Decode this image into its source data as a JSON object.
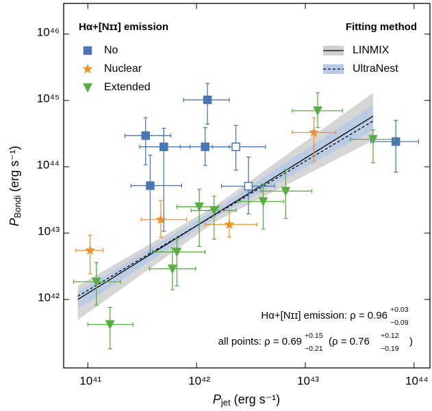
{
  "chart_data": {
    "type": "scatter",
    "xscale": "log",
    "yscale": "log",
    "xlim": [
      6e+40,
      1.4e+44
    ],
    "ylim": [
      9.3e+40,
      2.9e+46
    ],
    "xticks": [
      {
        "value": 1e+41,
        "label": "10⁴¹"
      },
      {
        "value": 1e+42,
        "label": "10⁴²"
      },
      {
        "value": 1e+43,
        "label": "10⁴³"
      },
      {
        "value": 1e+44,
        "label": "10⁴⁴"
      }
    ],
    "yticks": [
      {
        "value": 1e+42,
        "label": "10⁴²"
      },
      {
        "value": 1e+43,
        "label": "10⁴³"
      },
      {
        "value": 1e+44,
        "label": "10⁴⁴"
      },
      {
        "value": 1e+45,
        "label": "10⁴⁵"
      },
      {
        "value": 1e+46,
        "label": "10⁴⁶"
      }
    ],
    "x_label": {
      "symbol": "P",
      "subscript": "jet",
      "units": "(erg s⁻¹)"
    },
    "y_label": {
      "symbol": "P",
      "subscript": "Bondi",
      "units": "(erg s⁻¹)"
    },
    "legend_title": "Hα+[Nɪɪ] emission",
    "fits_legend_title": "Fitting method",
    "series": [
      {
        "name": "No",
        "color": "#4a77b4",
        "marker": "square",
        "x": [
          1.26e+42,
          3.4e+41,
          5e+41,
          1.2e+42,
          3.75e+41,
          6.8e+43,
          2.3e+42,
          3e+42
        ],
        "y": [
          1.02e+45,
          2.95e+44,
          2e+44,
          2e+44,
          5.2e+43,
          2.4e+44,
          2e+44,
          5.1e+43
        ],
        "x_low": [
          7.6e+41,
          2.2e+41,
          3e+41,
          7.1e+41,
          2.5e+41,
          4e+43,
          1.4e+42,
          1.7e+42
        ],
        "x_high": [
          2e+42,
          5.8e+41,
          8.7e+41,
          2e+42,
          7.3e+41,
          1.1e+44,
          4.3e+42,
          5.2e+42
        ],
        "y_low": [
          4.4e+44,
          1.07e+44,
          1.07e+43,
          1.05e+44,
          5e+42,
          8.3e+43,
          8.9e+43,
          1.95e+43
        ],
        "y_high": [
          1.8e+45,
          5.5e+44,
          3.8e+44,
          3.9e+44,
          1.5e+44,
          5e+44,
          4.2e+44,
          1.4e+44
        ],
        "filled": [
          true,
          true,
          true,
          true,
          true,
          true,
          false,
          false
        ]
      },
      {
        "name": "Nuclear",
        "color": "#f0922b",
        "marker": "star",
        "x": [
          1.05e+41,
          4.7e+41,
          2e+42,
          1.2e+43
        ],
        "y": [
          5.5e+42,
          1.6e+43,
          1.35e+43,
          3.3e+44
        ],
        "x_low": [
          7.8e+40,
          3.1e+41,
          1.2e+42,
          7.6e+42
        ],
        "x_high": [
          1.38e+41,
          8.1e+41,
          3.6e+42,
          1.9e+43
        ],
        "y_low": [
          2.45e+42,
          8.7e+42,
          8.7e+42,
          1.2e+44
        ],
        "y_high": [
          9.3e+42,
          3.1e+43,
          2.2e+43,
          5.5e+44
        ]
      },
      {
        "name": "Extended",
        "color": "#5aab45",
        "marker": "triangle-down",
        "x": [
          1.2e+41,
          1.6e+41,
          6e+41,
          6.6e+41,
          1.06e+42,
          1.45e+42,
          4.1e+42,
          6.6e+42,
          1.3e+43,
          4.2e+43
        ],
        "y": [
          1.85e+42,
          4.2e+41,
          2.9e+42,
          5.2e+42,
          2.5e+43,
          2.2e+43,
          3e+43,
          4.3e+43,
          7e+44,
          2.6e+44
        ],
        "x_low": [
          7.4e+40,
          1e+41,
          3.7e+41,
          4e+41,
          6.6e+41,
          8.9e+41,
          2.4e+42,
          3.9e+42,
          7.6e+42,
          2.6e+43
        ],
        "x_high": [
          2e+41,
          2.6e+41,
          9.8e+41,
          1.2e+42,
          1.6e+42,
          2.3e+42,
          6.3e+42,
          1.15e+43,
          2.2e+43,
          6.6e+43
        ],
        "y_low": [
          8.2e+41,
          1.8e+41,
          1.4e+42,
          1.6e+42,
          6.3e+42,
          8.1e+42,
          1.15e+43,
          1.66e+43,
          3.9e+44,
          1.15e+44
        ],
        "y_high": [
          3.6e+42,
          7.6e+41,
          6e+42,
          8.3e+42,
          4.6e+43,
          3.6e+43,
          5.5e+43,
          9.1e+43,
          1.3e+45,
          3.6e+44
        ]
      }
    ],
    "fits": [
      {
        "name": "LINMIX",
        "color": "#000000",
        "dash": false,
        "band_color": "#cfcfcf",
        "x": [
          8.1e+40,
          4.2e+43
        ],
        "y": [
          1e+42,
          5.8e+44
        ],
        "band_x": [
          8.1e+40,
          1.5e+42,
          4.2e+43
        ],
        "band_low": [
          4.9e+41,
          1.5e+43,
          2.5e+44
        ],
        "band_high": [
          1.6e+42,
          2.6e+43,
          1.3e+45
        ]
      },
      {
        "name": "UltraNest",
        "color": "#000000",
        "dash": true,
        "band_color": "#b5c9e6",
        "x": [
          8.1e+40,
          4.2e+43
        ],
        "y": [
          1.12e+42,
          4.9e+44
        ],
        "band_x": [
          8.1e+40,
          1.5e+42,
          4.2e+43
        ],
        "band_low": [
          7.2e+41,
          1.74e+43,
          3.6e+44
        ],
        "band_high": [
          1.3e+42,
          2.3e+43,
          8.5e+44
        ]
      }
    ],
    "annotations": [
      {
        "text": "Hα+[Nɪɪ] emission: ρ = 0.96",
        "sup": "+0.03",
        "sub": "−0.09"
      },
      {
        "text": "all points: ρ = 0.69",
        "sup": "+0.15",
        "sub": "−0.21",
        "text2": "(ρ = 0.76",
        "sup2": "+0.12",
        "sub2": "−0.19",
        "end": ")"
      }
    ]
  }
}
